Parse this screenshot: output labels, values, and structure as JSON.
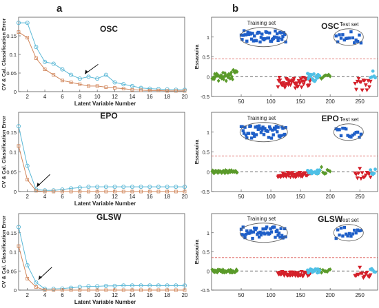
{
  "panel_labels": {
    "left": "a",
    "right": "b"
  },
  "colors": {
    "cv_line": "#5bb8d6",
    "cal_line": "#d08458",
    "training": "#1f5fc8",
    "test_class_red": "#d4202a",
    "green_class": "#5a9a2a",
    "cyan_class": "#4fc0e6",
    "threshold": "#d9534f",
    "axis": "#333333"
  },
  "chart_data": [
    {
      "type": "line",
      "panel": "OSC",
      "title": "OSC",
      "xlabel": "Latent Variable Number",
      "ylabel": "CV & Cal. Classification Error",
      "xlim": [
        1,
        20
      ],
      "ylim": [
        0,
        0.2
      ],
      "xticks": [
        2,
        4,
        6,
        8,
        10,
        12,
        14,
        16,
        18,
        20
      ],
      "yticks": [
        0,
        0.05,
        0.1,
        0.15
      ],
      "x": [
        1,
        2,
        3,
        4,
        5,
        6,
        7,
        8,
        9,
        10,
        11,
        12,
        13,
        14,
        15,
        16,
        17,
        18,
        19,
        20
      ],
      "series": [
        {
          "color": "#5bb8d6",
          "values": [
            0.185,
            0.185,
            0.12,
            0.08,
            0.075,
            0.06,
            0.045,
            0.035,
            0.04,
            0.035,
            0.045,
            0.025,
            0.02,
            0.015,
            0.01,
            0.008,
            0.007,
            0.006,
            0.005,
            0.005
          ]
        },
        {
          "color": "#d08458",
          "values": [
            0.16,
            0.145,
            0.09,
            0.06,
            0.045,
            0.03,
            0.025,
            0.02,
            0.015,
            0.015,
            0.012,
            0.01,
            0.008,
            0.005,
            0.004,
            0.003,
            0.003,
            0.002,
            0.002,
            0.002
          ]
        }
      ],
      "annotation_arrow_x": 8.5
    },
    {
      "type": "line",
      "panel": "EPO",
      "title": "EPO",
      "xlabel": "Latent Variable Number",
      "ylabel": "CV & Cal. Classification Error",
      "xlim": [
        1,
        20
      ],
      "ylim": [
        0,
        0.2
      ],
      "xticks": [
        2,
        4,
        6,
        8,
        10,
        12,
        14,
        16,
        18,
        20
      ],
      "yticks": [
        0,
        0.05,
        0.1,
        0.15
      ],
      "x": [
        1,
        2,
        3,
        4,
        5,
        6,
        7,
        8,
        9,
        10,
        11,
        12,
        13,
        14,
        15,
        16,
        17,
        18,
        19,
        20
      ],
      "series": [
        {
          "color": "#5bb8d6",
          "values": [
            0.165,
            0.065,
            0.005,
            0.003,
            0.003,
            0.005,
            0.008,
            0.01,
            0.012,
            0.012,
            0.012,
            0.012,
            0.012,
            0.012,
            0.012,
            0.012,
            0.012,
            0.012,
            0.012,
            0.012
          ]
        },
        {
          "color": "#d08458",
          "values": [
            0.115,
            0.03,
            0.002,
            0,
            0,
            0,
            0,
            0,
            0,
            0,
            0,
            0,
            0,
            0,
            0,
            0,
            0,
            0,
            0,
            0
          ]
        }
      ],
      "annotation_arrow_x": 3
    },
    {
      "type": "line",
      "panel": "GLSW",
      "title": "GLSW",
      "xlabel": "Latent Variable Number",
      "ylabel": "CV & Cal. Classification Error",
      "xlim": [
        1,
        20
      ],
      "ylim": [
        0,
        0.2
      ],
      "xticks": [
        2,
        4,
        6,
        8,
        10,
        12,
        14,
        16,
        18,
        20
      ],
      "yticks": [
        0,
        0.05,
        0.1,
        0.15
      ],
      "x": [
        1,
        2,
        3,
        4,
        5,
        6,
        7,
        8,
        9,
        10,
        11,
        12,
        13,
        14,
        15,
        16,
        17,
        18,
        19,
        20
      ],
      "series": [
        {
          "color": "#5bb8d6",
          "values": [
            0.165,
            0.065,
            0.02,
            0.003,
            0.003,
            0.004,
            0.006,
            0.008,
            0.01,
            0.01,
            0.011,
            0.011,
            0.012,
            0.012,
            0.012,
            0.012,
            0.012,
            0.012,
            0.012,
            0.012
          ]
        },
        {
          "color": "#d08458",
          "values": [
            0.115,
            0.03,
            0.008,
            0,
            0,
            0,
            0,
            0,
            0,
            0,
            0,
            0,
            0,
            0,
            0,
            0,
            0,
            0,
            0,
            0
          ]
        }
      ],
      "annotation_arrow_x": 3.2
    },
    {
      "type": "scatter",
      "panel": "OSC",
      "title": "OSC",
      "ylabel": "Essaouira",
      "xlim": [
        0,
        280
      ],
      "ylim": [
        -0.5,
        1.5
      ],
      "xticks": [
        50,
        100,
        150,
        200,
        250
      ],
      "yticks": [
        -0.5,
        0,
        0.5,
        1
      ],
      "threshold": 0.45,
      "group_labels": {
        "training": "Training set",
        "test": "Test set"
      }
    },
    {
      "type": "scatter",
      "panel": "EPO",
      "title": "EPO",
      "ylabel": "Essaouira",
      "xlim": [
        0,
        280
      ],
      "ylim": [
        -0.5,
        1.5
      ],
      "xticks": [
        50,
        100,
        150,
        200,
        250
      ],
      "yticks": [
        -0.5,
        0,
        0.5,
        1
      ],
      "threshold": 0.4,
      "group_labels": {
        "training": "Training set",
        "test": "Test set"
      }
    },
    {
      "type": "scatter",
      "panel": "GLSW",
      "title": "GLSW",
      "ylabel": "Essaouira",
      "xlim": [
        0,
        280
      ],
      "ylim": [
        -0.5,
        1.5
      ],
      "xticks": [
        50,
        100,
        150,
        200,
        250
      ],
      "yticks": [
        -0.5,
        0,
        0.5,
        1
      ],
      "threshold": 0.35,
      "group_labels": {
        "training": "Training set",
        "test": "Test set"
      }
    }
  ]
}
